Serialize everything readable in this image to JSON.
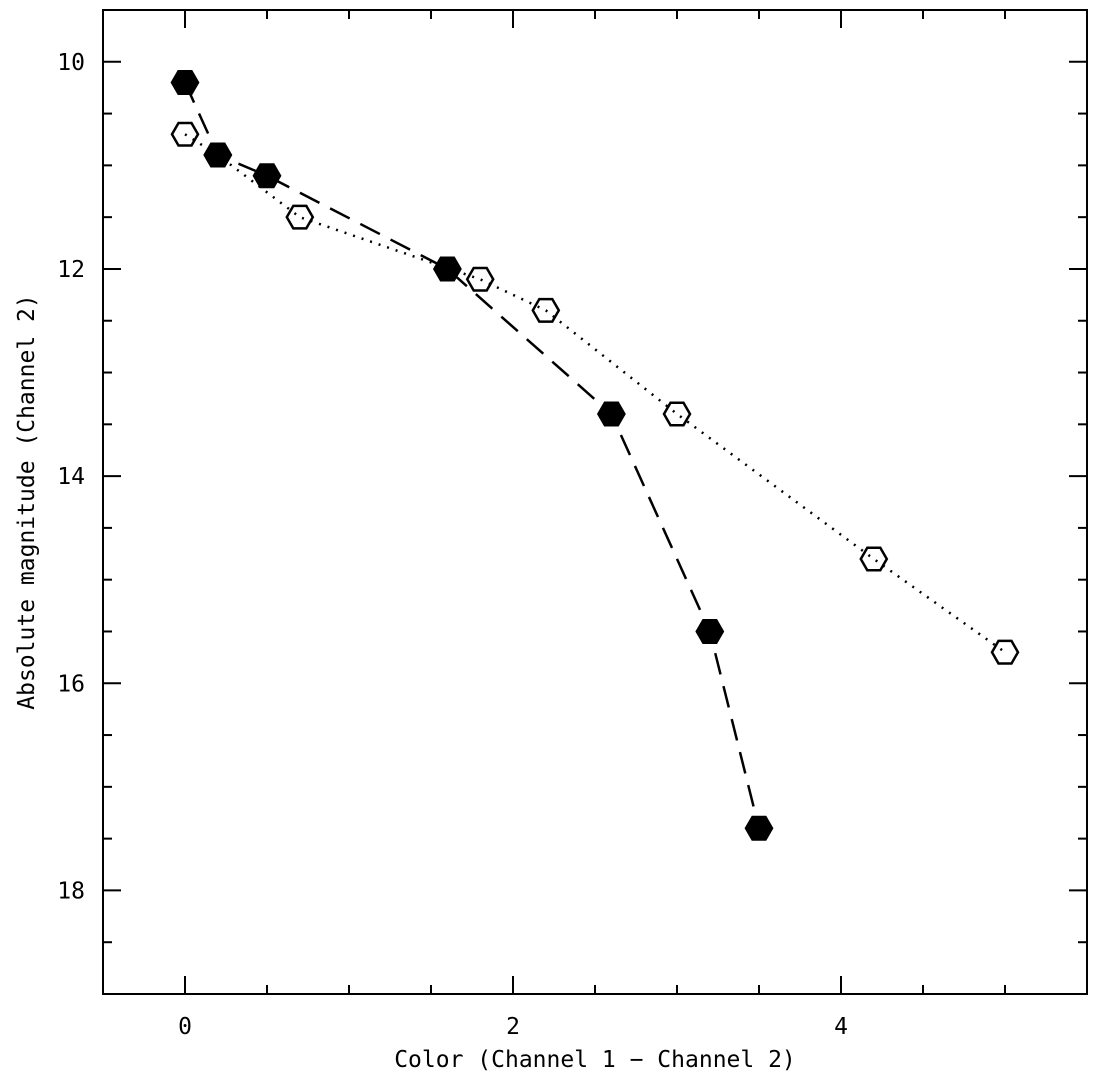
{
  "chart_data": {
    "type": "scatter",
    "title": "",
    "xlabel": "Color (Channel 1 − Channel 2)",
    "ylabel": "Absolute magnitude (Channel 2)",
    "xlim": [
      -0.5,
      5.5
    ],
    "ylim": [
      9.5,
      19.0
    ],
    "y_inverted": true,
    "x_major_ticks": [
      0,
      2,
      4
    ],
    "x_minor_ticks": [
      -0.5,
      0.5,
      1,
      1.5,
      2.5,
      3,
      3.5,
      4.5,
      5,
      5.5
    ],
    "y_major_ticks": [
      10,
      12,
      14,
      16,
      18
    ],
    "y_minor_ticks": [
      10.5,
      11,
      11.5,
      12.5,
      13,
      13.5,
      14.5,
      15,
      15.5,
      16.5,
      17,
      17.5,
      18.5
    ],
    "grid": false,
    "legend": "none",
    "series": [
      {
        "marker": "filled-hexagon",
        "line_style": "dashed",
        "color": "#000000",
        "points": [
          [
            0.0,
            10.2
          ],
          [
            0.2,
            10.9
          ],
          [
            0.5,
            11.1
          ],
          [
            1.6,
            12.0
          ],
          [
            2.6,
            13.4
          ],
          [
            3.2,
            15.5
          ],
          [
            3.5,
            17.4
          ]
        ]
      },
      {
        "marker": "open-hexagon",
        "line_style": "dotted",
        "color": "#000000",
        "points": [
          [
            0.0,
            10.7
          ],
          [
            0.2,
            10.9
          ],
          [
            0.7,
            11.5
          ],
          [
            1.8,
            12.1
          ],
          [
            2.2,
            12.4
          ],
          [
            3.0,
            13.4
          ],
          [
            4.2,
            14.8
          ],
          [
            5.0,
            15.7
          ]
        ]
      }
    ]
  }
}
